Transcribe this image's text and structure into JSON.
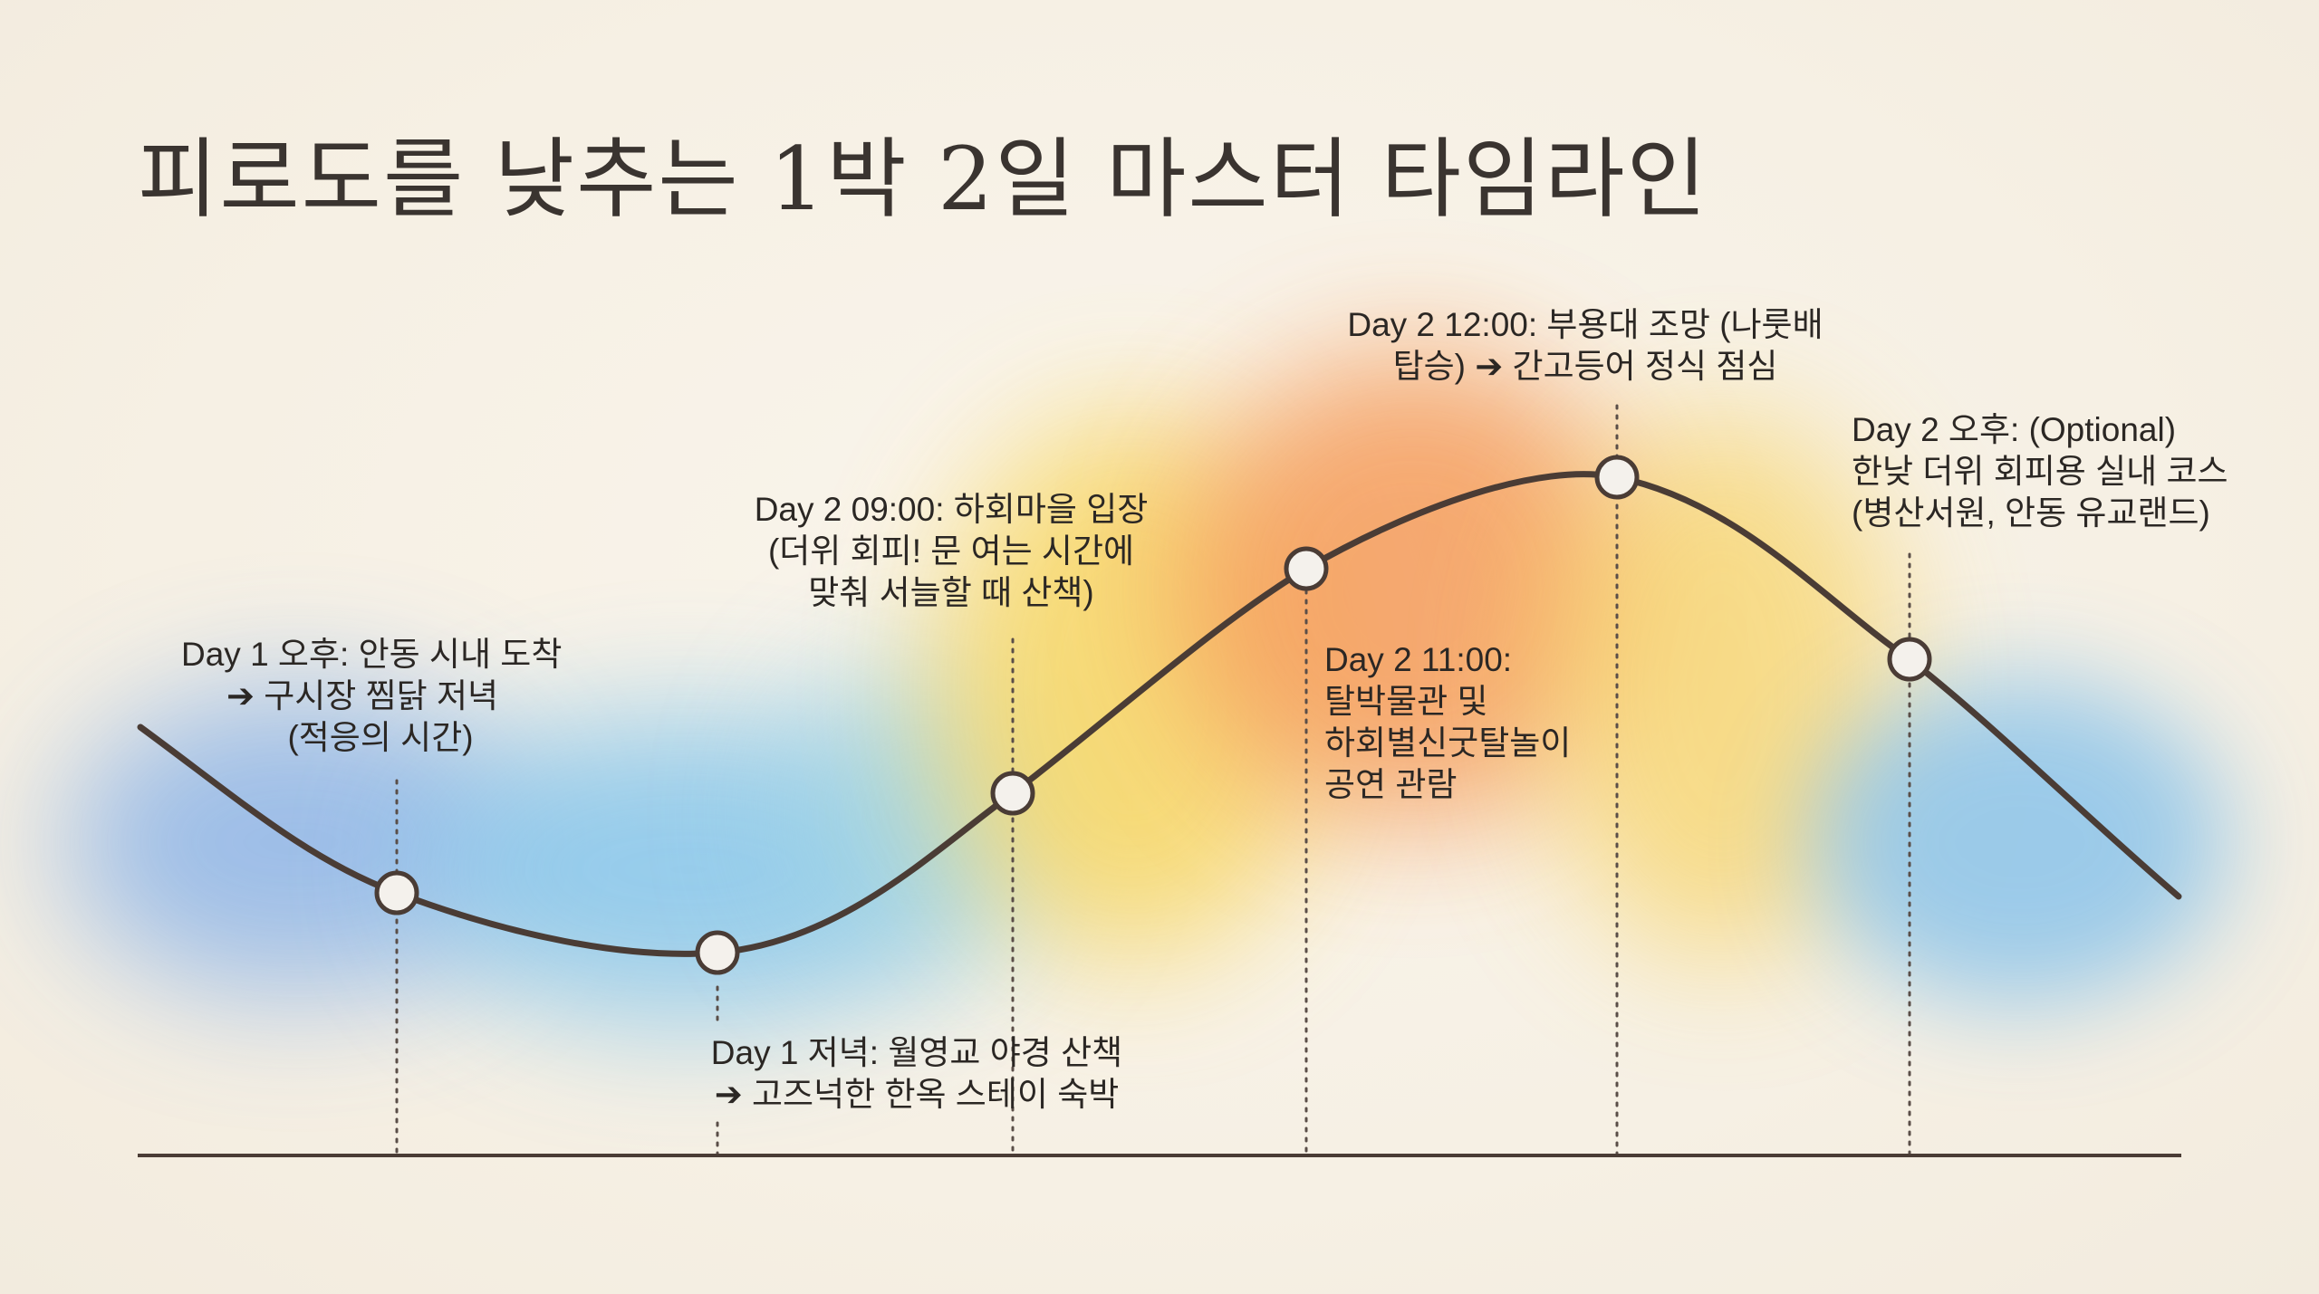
{
  "title": "피로도를 낮추는 1박 2일 마스터 타임라인",
  "events": [
    {
      "lines": [
        "Day 1 오후: 안동 시내 도착",
        "➔ 구시장 찜닭 저녁",
        "(적응의 시간)"
      ]
    },
    {
      "lines": [
        "Day 1 저녁: 월영교 야경 산책",
        "➔ 고즈넉한 한옥 스테이 숙박"
      ]
    },
    {
      "lines": [
        "Day 2 09:00: 하회마을 입장",
        "(더위 회피! 문 여는 시간에",
        "맞춰 서늘할 때 산책)"
      ]
    },
    {
      "lines": [
        "Day 2 11:00:",
        "탈박물관 및",
        "하회별신굿탈놀이",
        "공연 관람"
      ]
    },
    {
      "lines": [
        "Day 2 12:00: 부용대 조망 (나룻배",
        "탑승) ➔ 간고등어 정식 점심"
      ]
    },
    {
      "lines": [
        "Day 2 오후: (Optional)",
        "한낮 더위 회피용 실내 코스",
        "(병산서원, 안동 유교랜드)"
      ]
    }
  ],
  "colors": {
    "curve": "#4a3c35",
    "marker_fill": "#f4f1ec",
    "cool": "#7fb8e6",
    "warm": "#f6a25a",
    "text": "#2b2724"
  }
}
